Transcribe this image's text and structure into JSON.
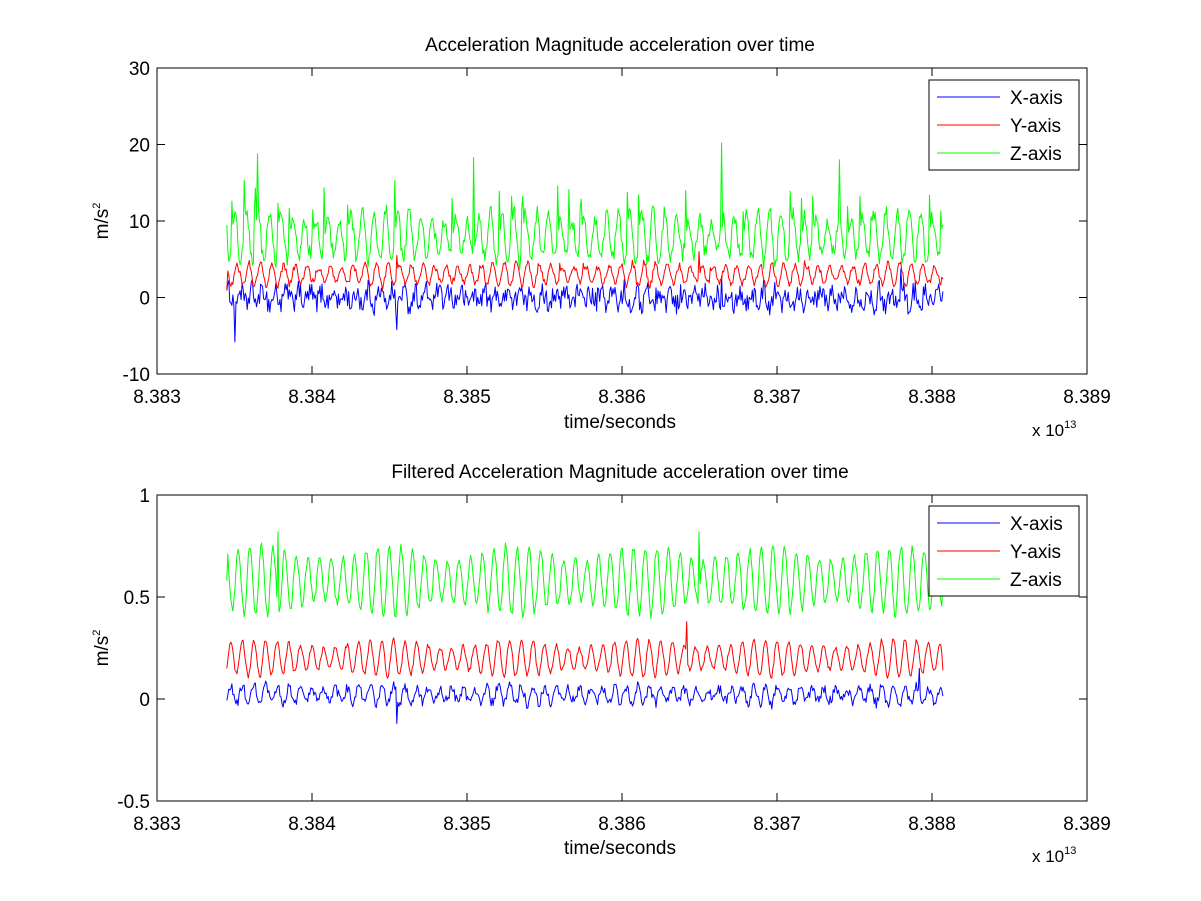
{
  "chart_data": [
    {
      "type": "line",
      "title": "Acceleration Magnitude acceleration over time",
      "xlabel": "time/seconds",
      "ylabel_base": "m/s",
      "ylabel_exponent": "2",
      "x_multiplier_prefix": "x 10",
      "x_multiplier_exponent": "13",
      "xlim": [
        8.383,
        8.389
      ],
      "ylim": [
        -10,
        30
      ],
      "x_tick_values": [
        8.383,
        8.384,
        8.385,
        8.386,
        8.387,
        8.388,
        8.389
      ],
      "x_ticks": [
        "8.383",
        "8.384",
        "8.385",
        "8.386",
        "8.387",
        "8.388",
        "8.389"
      ],
      "y_tick_values": [
        -10,
        0,
        10,
        20,
        30
      ],
      "y_ticks": [
        "-10",
        "0",
        "10",
        "20",
        "30"
      ],
      "grid": false,
      "legend_position": "top-right",
      "x_range": [
        8.38345,
        8.38807
      ],
      "series": [
        {
          "name": "X-axis",
          "color": "#0000ff",
          "mean": 0.0,
          "amp": 1.0,
          "noise": 1.4,
          "period": 7.5e-05,
          "spike_prob": 0.04,
          "spike_amp": 2.5,
          "events": [
            {
              "x": 8.3835,
              "y": -5.8
            },
            {
              "x": 8.38346,
              "y": 2.2
            },
            {
              "x": 8.38455,
              "y": -4.2
            },
            {
              "x": 8.38664,
              "y": 2.8
            },
            {
              "x": 8.38807,
              "y": 0.8
            }
          ]
        },
        {
          "name": "Y-axis",
          "color": "#ff0000",
          "mean": 3.0,
          "amp": 1.5,
          "noise": 0.45,
          "period": 7.5e-05,
          "spike_prob": 0.04,
          "spike_amp": 1.5,
          "events": [
            {
              "x": 8.38345,
              "y": 1.0
            },
            {
              "x": 8.38455,
              "y": 5.5
            },
            {
              "x": 8.3865,
              "y": 6.0
            },
            {
              "x": 8.38807,
              "y": 2.4
            }
          ]
        },
        {
          "name": "Z-axis",
          "color": "#00ff00",
          "mean": 8.0,
          "amp": 3.5,
          "noise": 1.0,
          "period": 7.5e-05,
          "spike_prob": 0.35,
          "spike_amp": 6.5,
          "events": [
            {
              "x": 8.38345,
              "y": 9.5
            },
            {
              "x": 8.38365,
              "y": 18.8
            },
            {
              "x": 8.38504,
              "y": 18.3
            },
            {
              "x": 8.38664,
              "y": 20.2
            },
            {
              "x": 8.3874,
              "y": 18.0
            },
            {
              "x": 8.38807,
              "y": 9.5
            }
          ]
        }
      ]
    },
    {
      "type": "line",
      "title": "Filtered Acceleration Magnitude acceleration over time",
      "xlabel": "time/seconds",
      "ylabel_base": "m/s",
      "ylabel_exponent": "2",
      "x_multiplier_prefix": "x 10",
      "x_multiplier_exponent": "13",
      "xlim": [
        8.383,
        8.389
      ],
      "ylim": [
        -0.5,
        1
      ],
      "x_tick_values": [
        8.383,
        8.384,
        8.385,
        8.386,
        8.387,
        8.388,
        8.389
      ],
      "x_ticks": [
        "8.383",
        "8.384",
        "8.385",
        "8.386",
        "8.387",
        "8.388",
        "8.389"
      ],
      "y_tick_values": [
        -0.5,
        0,
        0.5,
        1
      ],
      "y_ticks": [
        "-0.5",
        "0",
        "0.5",
        "1"
      ],
      "grid": false,
      "legend_position": "top-right",
      "x_range": [
        8.38345,
        8.38807
      ],
      "series": [
        {
          "name": "X-axis",
          "color": "#0000ff",
          "mean": 0.02,
          "amp": 0.045,
          "noise": 0.025,
          "period": 7.5e-05,
          "spike_prob": 0.0,
          "spike_amp": 0.0,
          "events": [
            {
              "x": 8.38455,
              "y": -0.12
            },
            {
              "x": 8.38792,
              "y": 0.15
            }
          ]
        },
        {
          "name": "Y-axis",
          "color": "#ff0000",
          "mean": 0.2,
          "amp": 0.09,
          "noise": 0.012,
          "period": 7.5e-05,
          "spike_prob": 0.0,
          "spike_amp": 0.0,
          "events": [
            {
              "x": 8.38345,
              "y": 0.15
            },
            {
              "x": 8.38642,
              "y": 0.38
            },
            {
              "x": 8.38807,
              "y": 0.14
            }
          ]
        },
        {
          "name": "Z-axis",
          "color": "#00ff00",
          "mean": 0.58,
          "amp": 0.17,
          "noise": 0.02,
          "period": 7.5e-05,
          "spike_prob": 0.0,
          "spike_amp": 0.0,
          "events": [
            {
              "x": 8.38345,
              "y": 0.58
            },
            {
              "x": 8.38378,
              "y": 0.82
            },
            {
              "x": 8.3865,
              "y": 0.82
            },
            {
              "x": 8.38807,
              "y": 0.58
            }
          ]
        }
      ]
    }
  ]
}
